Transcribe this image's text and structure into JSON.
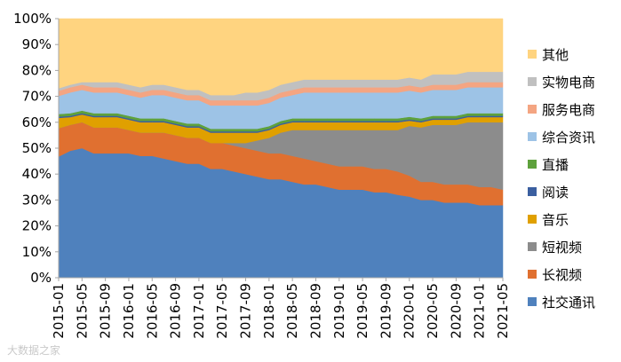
{
  "chart_data": {
    "type": "area",
    "stacked": true,
    "normalized": true,
    "x": [
      "2015-01",
      "2015-03",
      "2015-05",
      "2015-07",
      "2015-09",
      "2015-11",
      "2016-01",
      "2016-03",
      "2016-05",
      "2016-07",
      "2016-09",
      "2016-11",
      "2017-01",
      "2017-03",
      "2017-05",
      "2017-07",
      "2017-09",
      "2017-11",
      "2018-01",
      "2018-03",
      "2018-05",
      "2018-07",
      "2018-09",
      "2018-11",
      "2019-01",
      "2019-03",
      "2019-05",
      "2019-07",
      "2019-09",
      "2019-11",
      "2020-01",
      "2020-03",
      "2020-05",
      "2020-07",
      "2020-09",
      "2020-11",
      "2021-01",
      "2021-03",
      "2021-05"
    ],
    "x_tick_labels": [
      "2015-01",
      "2015-05",
      "2015-09",
      "2016-01",
      "2016-05",
      "2016-09",
      "2017-01",
      "2017-05",
      "2017-09",
      "2018-01",
      "2018-05",
      "2018-09",
      "2019-01",
      "2019-05",
      "2019-09",
      "2020-01",
      "2020-05",
      "2020-09",
      "2021-01",
      "2021-05"
    ],
    "y_ticks": [
      "0%",
      "10%",
      "20%",
      "30%",
      "40%",
      "50%",
      "60%",
      "70%",
      "80%",
      "90%",
      "100%"
    ],
    "ylim": [
      0,
      100
    ],
    "series": [
      {
        "name": "社交通讯",
        "color": "#4f81bd",
        "values": [
          47,
          49,
          50,
          48,
          48,
          48,
          48,
          47,
          47,
          46,
          45,
          44,
          44,
          42,
          42,
          41,
          40,
          39,
          38,
          38,
          37,
          36,
          36,
          35,
          34,
          34,
          34,
          33,
          33,
          32,
          31,
          30,
          30,
          29,
          29,
          29,
          28,
          28,
          28
        ]
      },
      {
        "name": "长视频",
        "color": "#e07030",
        "values": [
          11,
          10,
          10,
          10,
          10,
          10,
          9,
          9,
          9,
          10,
          10,
          10,
          10,
          10,
          10,
          10,
          10,
          10,
          10,
          10,
          10,
          10,
          9,
          9,
          9,
          9,
          9,
          9,
          9,
          9,
          8,
          7,
          7,
          7,
          7,
          7,
          7,
          7,
          6
        ]
      },
      {
        "name": "短视频",
        "color": "#8c8c8c",
        "values": [
          0,
          0,
          0,
          0,
          0,
          0,
          0,
          0,
          0,
          0,
          0,
          0,
          0,
          0,
          0,
          1,
          2,
          4,
          6,
          8,
          10,
          11,
          12,
          13,
          14,
          14,
          14,
          15,
          15,
          16,
          19,
          21,
          22,
          23,
          23,
          24,
          25,
          25,
          26
        ]
      },
      {
        "name": "音乐",
        "color": "#e0a000",
        "values": [
          4,
          3,
          3,
          4,
          4,
          4,
          4,
          4,
          4,
          4,
          4,
          4,
          4,
          4,
          4,
          4,
          4,
          3,
          3,
          3,
          3,
          3,
          3,
          3,
          3,
          3,
          3,
          3,
          3,
          3,
          2,
          2,
          2,
          2,
          2,
          2,
          2,
          2,
          2
        ]
      },
      {
        "name": "阅读",
        "color": "#3b5fa0",
        "values": [
          0.5,
          0.5,
          0.5,
          0.5,
          0.5,
          0.5,
          0.5,
          0.5,
          0.5,
          0.5,
          0.5,
          0.5,
          0.5,
          0.5,
          0.5,
          0.5,
          0.5,
          0.5,
          0.5,
          0.5,
          0.5,
          0.5,
          0.5,
          0.5,
          0.5,
          0.5,
          0.5,
          0.5,
          0.5,
          0.5,
          0.5,
          0.5,
          0.5,
          0.5,
          0.5,
          0.5,
          0.5,
          0.5,
          0.5
        ]
      },
      {
        "name": "直播",
        "color": "#5ea13c",
        "values": [
          1,
          1,
          1,
          1,
          1,
          1,
          1,
          1,
          1,
          1,
          1,
          1,
          1,
          1,
          1,
          1,
          1,
          1,
          1,
          1,
          1,
          1,
          1,
          1,
          1,
          1,
          1,
          1,
          1,
          1,
          1,
          1,
          1,
          1,
          1,
          1,
          1,
          1,
          1
        ]
      },
      {
        "name": "综合资讯",
        "color": "#9dc3e6",
        "values": [
          7,
          8,
          8,
          8,
          8,
          8,
          8,
          8,
          9,
          9,
          9,
          9,
          9,
          9,
          9,
          9,
          9,
          9,
          9,
          9,
          9,
          10,
          10,
          10,
          10,
          10,
          10,
          10,
          10,
          10,
          10,
          10,
          10,
          10,
          10,
          10,
          10,
          10,
          10
        ]
      },
      {
        "name": "服务电商",
        "color": "#f4a582",
        "values": [
          2,
          2,
          2,
          2,
          2,
          2,
          2,
          2,
          2,
          2,
          2,
          2,
          2,
          2,
          2,
          2,
          2,
          2,
          2,
          2,
          2,
          2,
          2,
          2,
          2,
          2,
          2,
          2,
          2,
          2,
          2,
          2,
          2,
          2,
          2,
          2,
          2,
          2,
          2
        ]
      },
      {
        "name": "实物电商",
        "color": "#c0c0c0",
        "values": [
          1,
          1,
          1,
          2,
          2,
          2,
          2,
          2,
          2,
          2,
          2,
          2,
          2,
          2,
          2,
          2,
          3,
          3,
          3,
          3,
          3,
          3,
          3,
          3,
          3,
          3,
          3,
          3,
          3,
          3,
          3,
          3,
          4,
          4,
          4,
          4,
          4,
          4,
          4
        ]
      },
      {
        "name": "其他",
        "color": "#ffd480",
        "values": [
          27,
          25.5,
          24.5,
          24.5,
          24.5,
          24.5,
          25.5,
          26.5,
          25.5,
          25.5,
          26.5,
          27.5,
          27.5,
          29.5,
          29.5,
          29.5,
          28.5,
          28.5,
          27.5,
          25.5,
          24.5,
          23.5,
          23.5,
          23.5,
          23.5,
          23.5,
          23.5,
          23.5,
          23.5,
          23.5,
          22.5,
          23.5,
          21.5,
          21.5,
          21.5,
          20.5,
          20.5,
          20.5,
          20.5
        ]
      }
    ],
    "legend": {
      "order": [
        "其他",
        "实物电商",
        "服务电商",
        "综合资讯",
        "直播",
        "阅读",
        "音乐",
        "短视频",
        "长视频",
        "社交通讯"
      ],
      "placement": "right"
    }
  },
  "watermark": {
    "text": "大数据之家"
  }
}
